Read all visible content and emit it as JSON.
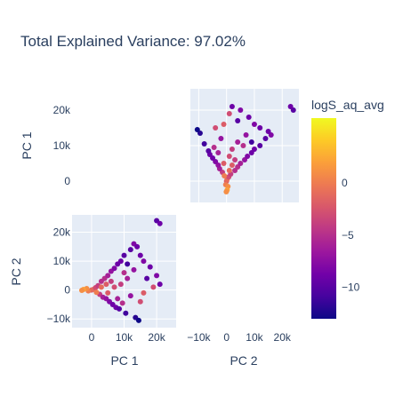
{
  "chart_data": {
    "type": "scatter",
    "title": "Total Explained Variance: 97.02%",
    "dimensions": [
      "PC 1",
      "PC 2"
    ],
    "matrix": "scatter-matrix (lower-left: PC 1 vs PC 2, upper-right: PC 2 vs PC 1, diagonal panels empty)",
    "axes": {
      "PC1": {
        "range": [
          -6000,
          26000
        ],
        "ticks": [
          0,
          10000,
          20000
        ],
        "tick_labels": [
          "0",
          "10k",
          "20k"
        ]
      },
      "PC2": {
        "range": [
          -13000,
          26000
        ],
        "ticks": [
          -10000,
          0,
          10000,
          20000
        ],
        "tick_labels": [
          "−10k",
          "0",
          "10k",
          "20k"
        ]
      },
      "PC1_upper_y": {
        "ticks": [
          0,
          10000,
          20000
        ],
        "tick_labels": [
          "0",
          "10k",
          "20k"
        ]
      },
      "PC2_upper_x": {
        "ticks": [
          -10000,
          0,
          10000,
          20000
        ],
        "tick_labels": [
          "−10k",
          "0",
          "10k",
          "20k"
        ]
      }
    },
    "labels": {
      "x_left": "PC 1",
      "x_right": "PC 2",
      "y_top": "PC 1",
      "y_bottom": "PC 2"
    },
    "colorbar": {
      "title": "logS_aq_avg",
      "range": [
        -13,
        6.2
      ],
      "ticks": [
        0,
        -5,
        -10
      ],
      "tick_labels": [
        "0",
        "−5",
        "−10"
      ],
      "colorscale": [
        "#0d0887",
        "#46039f",
        "#7201a8",
        "#9c179e",
        "#bd3786",
        "#d8576b",
        "#ed7953",
        "#fb9f3a",
        "#fdca26",
        "#f0f921"
      ]
    },
    "grid": true,
    "points": [
      {
        "pc1": 0,
        "pc2": 0,
        "c": -2
      },
      {
        "pc1": 500,
        "pc2": 200,
        "c": -1
      },
      {
        "pc1": -1000,
        "pc2": -300,
        "c": 0
      },
      {
        "pc1": -1500,
        "pc2": 500,
        "c": 1
      },
      {
        "pc1": 1200,
        "pc2": 800,
        "c": -3
      },
      {
        "pc1": 2000,
        "pc2": 1500,
        "c": -4
      },
      {
        "pc1": 2500,
        "pc2": -1500,
        "c": -4
      },
      {
        "pc1": 3000,
        "pc2": 3000,
        "c": -5
      },
      {
        "pc1": 3500,
        "pc2": -2500,
        "c": -6
      },
      {
        "pc1": 4000,
        "pc2": 4000,
        "c": -5
      },
      {
        "pc1": 4500,
        "pc2": -3000,
        "c": -7
      },
      {
        "pc1": 5000,
        "pc2": 5000,
        "c": -6
      },
      {
        "pc1": 5500,
        "pc2": -4000,
        "c": -8
      },
      {
        "pc1": 6000,
        "pc2": 6500,
        "c": -7
      },
      {
        "pc1": 6500,
        "pc2": -5000,
        "c": -9
      },
      {
        "pc1": 7000,
        "pc2": 7500,
        "c": -8
      },
      {
        "pc1": 7500,
        "pc2": -6000,
        "c": -9
      },
      {
        "pc1": 8000,
        "pc2": 9000,
        "c": -9
      },
      {
        "pc1": 8500,
        "pc2": -6500,
        "c": -10
      },
      {
        "pc1": 9000,
        "pc2": 10000,
        "c": -9
      },
      {
        "pc1": 10000,
        "pc2": 12000,
        "c": -10
      },
      {
        "pc1": 10500,
        "pc2": -8000,
        "c": -11
      },
      {
        "pc1": 12000,
        "pc2": 14000,
        "c": -10
      },
      {
        "pc1": 13000,
        "pc2": 16000,
        "c": -8
      },
      {
        "pc1": 13500,
        "pc2": -9500,
        "c": -12
      },
      {
        "pc1": 14000,
        "pc2": 15000,
        "c": -9
      },
      {
        "pc1": 15000,
        "pc2": 12000,
        "c": -9
      },
      {
        "pc1": 16000,
        "pc2": 10000,
        "c": -8
      },
      {
        "pc1": 17000,
        "pc2": 4000,
        "c": -10
      },
      {
        "pc1": 18000,
        "pc2": 8000,
        "c": -9
      },
      {
        "pc1": 19000,
        "pc2": 1000,
        "c": -3
      },
      {
        "pc1": 20000,
        "pc2": 24000,
        "c": -10
      },
      {
        "pc1": 21000,
        "pc2": 23000,
        "c": -9
      },
      {
        "pc1": 20000,
        "pc2": 5000,
        "c": -8
      },
      {
        "pc1": 21000,
        "pc2": 2000,
        "c": -9
      },
      {
        "pc1": 14500,
        "pc2": -10500,
        "c": -13
      },
      {
        "pc1": 11000,
        "pc2": 4000,
        "c": -6
      },
      {
        "pc1": 9000,
        "pc2": 2000,
        "c": -4
      },
      {
        "pc1": 7000,
        "pc2": 1000,
        "c": -3
      },
      {
        "pc1": 5000,
        "pc2": -1000,
        "c": -2
      },
      {
        "pc1": 12000,
        "pc2": -2000,
        "c": -7
      },
      {
        "pc1": 15000,
        "pc2": -4000,
        "c": -3
      },
      {
        "pc1": 10000,
        "pc2": 6000,
        "c": -5
      },
      {
        "pc1": 8000,
        "pc2": -3000,
        "c": -6
      },
      {
        "pc1": 3000,
        "pc2": 1000,
        "c": -1
      },
      {
        "pc1": 1500,
        "pc2": -800,
        "c": 0
      },
      {
        "pc1": -2500,
        "pc2": 200,
        "c": 2
      },
      {
        "pc1": -3000,
        "pc2": -100,
        "c": 1
      },
      {
        "pc1": 6000,
        "pc2": 3000,
        "c": -4
      },
      {
        "pc1": 11000,
        "pc2": 9000,
        "c": -11
      },
      {
        "pc1": 13000,
        "pc2": 7000,
        "c": -7
      },
      {
        "pc1": 16000,
        "pc2": -1000,
        "c": -2
      },
      {
        "pc1": 4500,
        "pc2": 2000,
        "c": -2
      },
      {
        "pc1": 9500,
        "pc2": -4500,
        "c": -5
      }
    ]
  }
}
